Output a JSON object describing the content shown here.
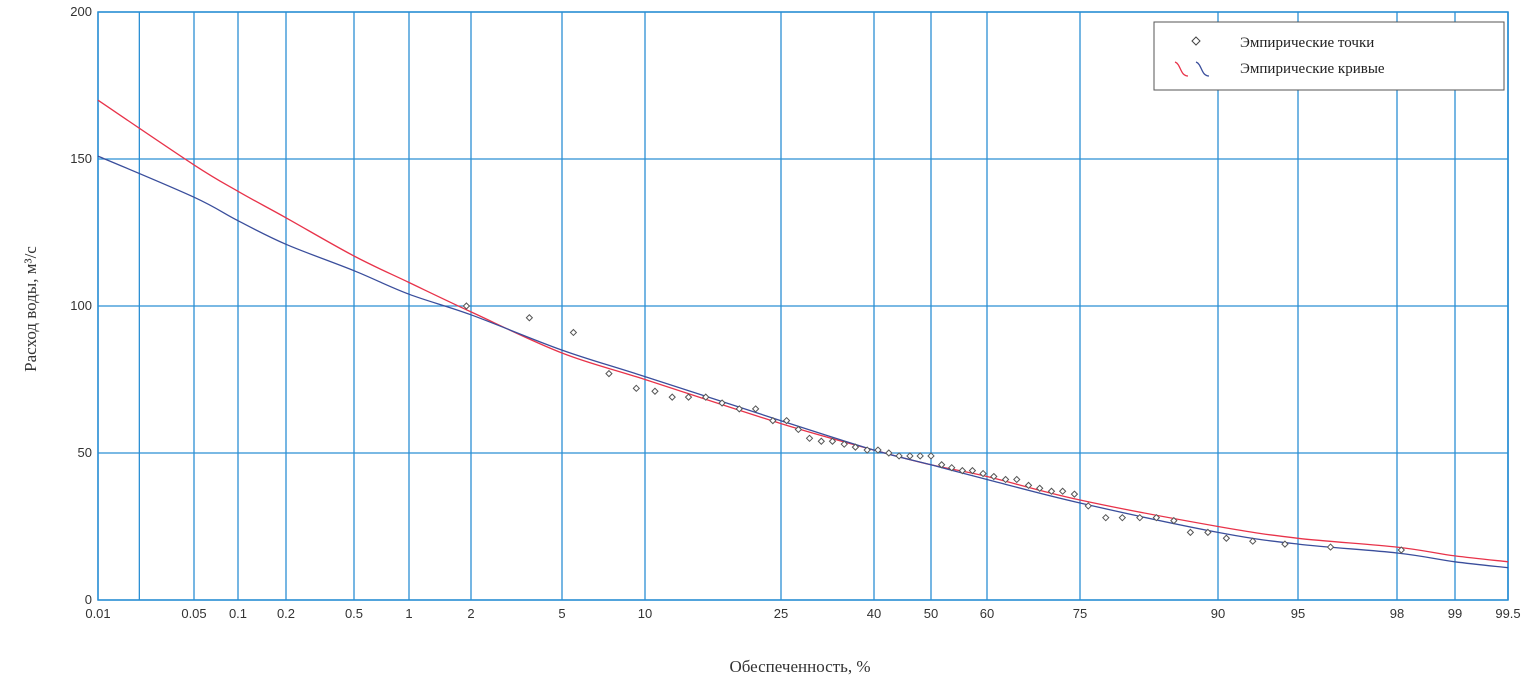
{
  "chart_data": {
    "type": "scatter",
    "x_scale": "probability",
    "xlabel": "Обеспеченность, %",
    "ylabel": "Расход воды, м³/с",
    "ylim": [
      0,
      200
    ],
    "grid": true,
    "legend_position": "top-right",
    "x_ticks": [
      {
        "value": 0.01,
        "label": "0.01"
      },
      {
        "value": 0.05,
        "label": "0.05"
      },
      {
        "value": 0.1,
        "label": "0.1"
      },
      {
        "value": 0.2,
        "label": "0.2"
      },
      {
        "value": 0.5,
        "label": "0.5"
      },
      {
        "value": 1,
        "label": "1"
      },
      {
        "value": 2,
        "label": "2"
      },
      {
        "value": 5,
        "label": "5"
      },
      {
        "value": 10,
        "label": "10"
      },
      {
        "value": 25,
        "label": "25"
      },
      {
        "value": 40,
        "label": "40"
      },
      {
        "value": 50,
        "label": "50"
      },
      {
        "value": 60,
        "label": "60"
      },
      {
        "value": 75,
        "label": "75"
      },
      {
        "value": 90,
        "label": "90"
      },
      {
        "value": 95,
        "label": "95"
      },
      {
        "value": 98,
        "label": "98"
      },
      {
        "value": 99,
        "label": "99"
      },
      {
        "value": 99.5,
        "label": "99.5"
      }
    ],
    "x_grid_extra": [
      0.02,
      99.5
    ],
    "y_ticks": [
      0,
      50,
      100,
      150,
      200
    ],
    "colors": {
      "grid": "#2b8fd4",
      "red_curve": "#e8334a",
      "blue_curve": "#3a4e9c",
      "points": "#555555"
    },
    "legend": [
      {
        "label": "Эмпирические точки",
        "marker": "diamond"
      },
      {
        "label": "Эмпирические кривые",
        "marker": "curves"
      }
    ],
    "series": [
      {
        "kind": "points",
        "x": [
          1.9,
          3.6,
          5.5,
          7.4,
          9.3,
          11.1,
          13,
          14.8,
          16.7,
          18.5,
          20.4,
          22.2,
          24.1,
          25.9,
          27.8,
          29.6,
          31.5,
          33.3,
          35.2,
          37,
          38.9,
          40.7,
          42.6,
          44.4,
          46.3,
          48.1,
          50,
          51.9,
          53.7,
          55.6,
          57.4,
          59.3,
          61.1,
          63,
          64.8,
          66.7,
          68.5,
          70.4,
          72.2,
          74.1,
          75.9,
          77.8,
          79.6,
          81.5,
          83.3,
          85.2,
          87,
          88.9,
          90.7,
          92.6,
          94.4,
          96.3,
          98.1
        ],
        "y": [
          100,
          96,
          91,
          77,
          72,
          71,
          69,
          69,
          69,
          67,
          65,
          65,
          61,
          61,
          58,
          55,
          54,
          54,
          53,
          52,
          51,
          51,
          50,
          49,
          49,
          49,
          49,
          46,
          45,
          44,
          44,
          43,
          42,
          41,
          41,
          39,
          38,
          37,
          37,
          36,
          32,
          28,
          28,
          28,
          28,
          27,
          23,
          23,
          21,
          20,
          19,
          18,
          17
        ]
      },
      {
        "kind": "curve",
        "color": "red",
        "x": [
          0.01,
          0.05,
          0.1,
          0.2,
          0.5,
          1,
          2,
          5,
          10,
          25,
          40,
          50,
          60,
          75,
          90,
          95,
          98,
          99,
          99.5
        ],
        "y": [
          170,
          148,
          139,
          130,
          117,
          108,
          98,
          84,
          75,
          60,
          51,
          46,
          42,
          34,
          25,
          21,
          18,
          15,
          13
        ]
      },
      {
        "kind": "curve",
        "color": "blue",
        "x": [
          0.01,
          0.05,
          0.1,
          0.2,
          0.5,
          1,
          2,
          5,
          10,
          25,
          40,
          50,
          60,
          75,
          90,
          95,
          98,
          99,
          99.5
        ],
        "y": [
          151,
          137,
          129,
          121,
          112,
          104,
          97,
          85,
          76,
          61,
          51,
          46,
          41,
          33,
          23,
          19,
          16,
          13,
          11
        ]
      }
    ]
  }
}
